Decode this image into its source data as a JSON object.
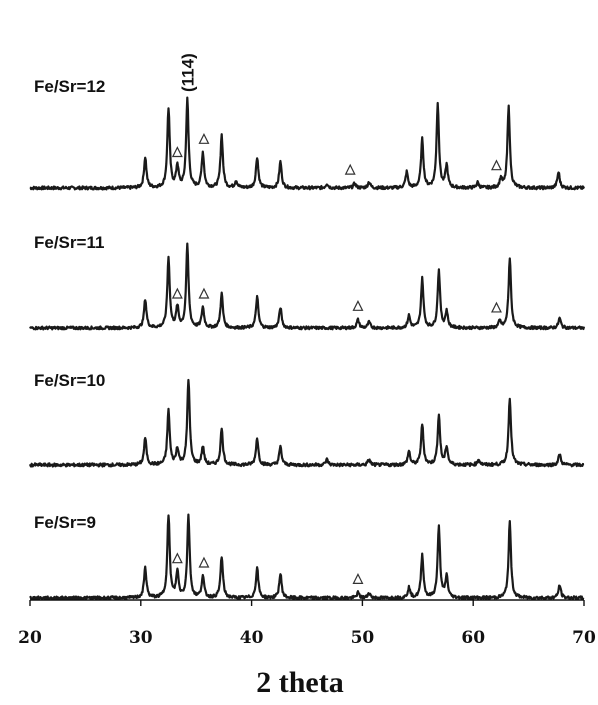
{
  "chart_data": {
    "type": "line",
    "title": "",
    "xlabel": "2 theta",
    "ylabel": "",
    "xlim": [
      20,
      70
    ],
    "xticks": [
      20,
      30,
      40,
      50,
      60,
      70
    ],
    "y_axis": "stacked, no scale",
    "grid": false,
    "legend": "none (series labelled inline at left)",
    "annotation": "(114)",
    "annotation_x": 34.2,
    "marker_symbol": "open triangle",
    "series": [
      {
        "name": "Fe/Sr=12",
        "peaks": [
          [
            30.4,
            0.35
          ],
          [
            32.5,
            0.9
          ],
          [
            33.3,
            0.25
          ],
          [
            34.2,
            1.0
          ],
          [
            35.6,
            0.4
          ],
          [
            37.3,
            0.6
          ],
          [
            38.6,
            0.08
          ],
          [
            40.5,
            0.35
          ],
          [
            42.6,
            0.3
          ],
          [
            46.8,
            0.05
          ],
          [
            49.3,
            0.05
          ],
          [
            50.6,
            0.07
          ],
          [
            54.0,
            0.18
          ],
          [
            55.4,
            0.55
          ],
          [
            56.8,
            0.95
          ],
          [
            57.6,
            0.25
          ],
          [
            60.4,
            0.06
          ],
          [
            62.5,
            0.1
          ],
          [
            63.2,
            0.92
          ],
          [
            67.7,
            0.18
          ]
        ],
        "impurity_markers": [
          33.3,
          35.7,
          48.9,
          62.1
        ]
      },
      {
        "name": "Fe/Sr=11",
        "peaks": [
          [
            30.4,
            0.35
          ],
          [
            32.5,
            0.85
          ],
          [
            33.3,
            0.25
          ],
          [
            34.2,
            1.0
          ],
          [
            35.6,
            0.25
          ],
          [
            37.3,
            0.42
          ],
          [
            40.5,
            0.38
          ],
          [
            42.6,
            0.25
          ],
          [
            49.6,
            0.1
          ],
          [
            50.6,
            0.07
          ],
          [
            54.2,
            0.15
          ],
          [
            55.4,
            0.6
          ],
          [
            56.9,
            0.7
          ],
          [
            57.6,
            0.2
          ],
          [
            62.4,
            0.08
          ],
          [
            63.3,
            0.85
          ],
          [
            67.8,
            0.12
          ]
        ],
        "impurity_markers": [
          33.3,
          35.7,
          49.6,
          62.1
        ]
      },
      {
        "name": "Fe/Sr=10",
        "peaks": [
          [
            30.4,
            0.3
          ],
          [
            32.5,
            0.6
          ],
          [
            33.3,
            0.18
          ],
          [
            34.3,
            0.95
          ],
          [
            35.6,
            0.2
          ],
          [
            37.3,
            0.4
          ],
          [
            40.5,
            0.3
          ],
          [
            42.6,
            0.2
          ],
          [
            46.8,
            0.06
          ],
          [
            50.6,
            0.06
          ],
          [
            54.2,
            0.15
          ],
          [
            55.4,
            0.45
          ],
          [
            56.9,
            0.55
          ],
          [
            57.6,
            0.2
          ],
          [
            60.5,
            0.06
          ],
          [
            63.3,
            0.75
          ],
          [
            67.8,
            0.12
          ]
        ],
        "impurity_markers": []
      },
      {
        "name": "Fe/Sr=9",
        "peaks": [
          [
            30.4,
            0.35
          ],
          [
            32.5,
            0.95
          ],
          [
            33.3,
            0.3
          ],
          [
            34.3,
            0.95
          ],
          [
            35.6,
            0.25
          ],
          [
            37.3,
            0.48
          ],
          [
            40.5,
            0.35
          ],
          [
            42.6,
            0.28
          ],
          [
            49.6,
            0.06
          ],
          [
            50.6,
            0.06
          ],
          [
            54.2,
            0.12
          ],
          [
            55.4,
            0.5
          ],
          [
            56.9,
            0.82
          ],
          [
            57.6,
            0.25
          ],
          [
            63.3,
            0.88
          ],
          [
            67.8,
            0.15
          ]
        ],
        "impurity_markers": [
          33.3,
          35.7,
          49.6
        ]
      }
    ]
  }
}
